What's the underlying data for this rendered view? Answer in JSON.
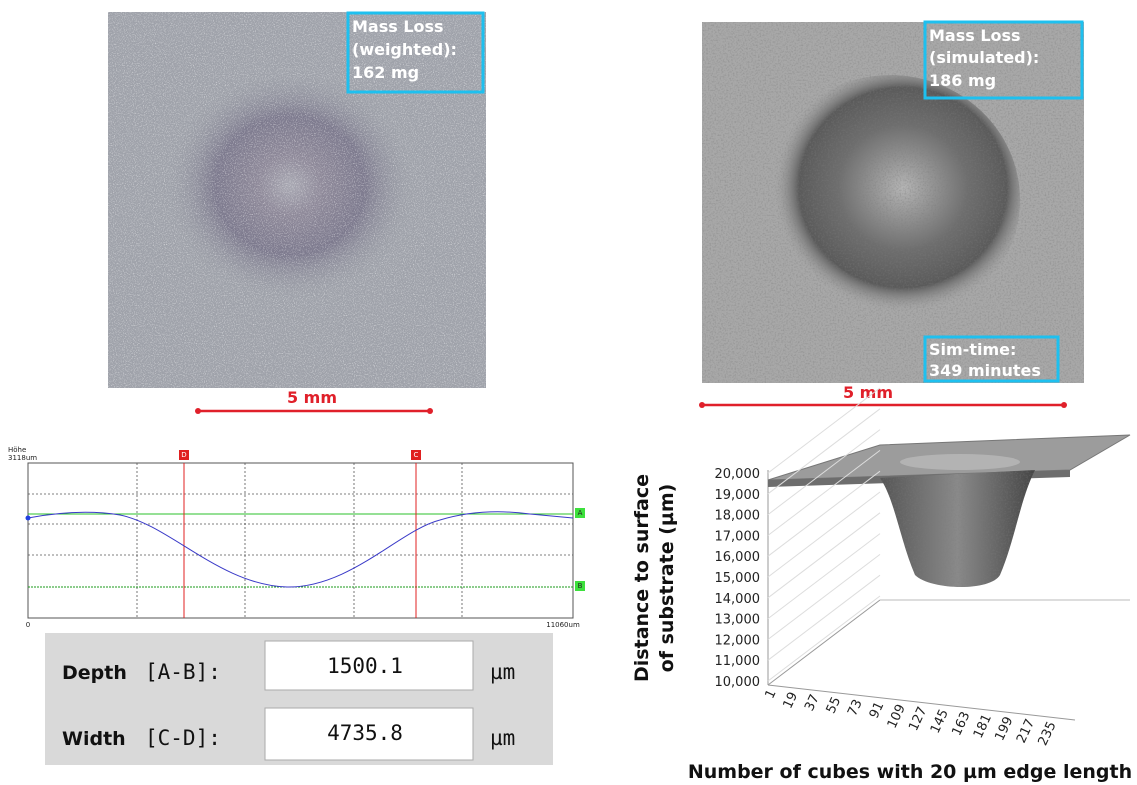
{
  "left_image": {
    "mass_loss_lines": [
      "Mass Loss",
      "(weighted):",
      "162 mg"
    ],
    "scale": "5 mm"
  },
  "right_image": {
    "mass_loss_lines": [
      "Mass Loss",
      "(simulated):",
      "186 mg"
    ],
    "sim_time_lines": [
      "Sim-time:",
      "349 minutes"
    ],
    "scale": "5 mm"
  },
  "profile": {
    "y_label": "Höhe",
    "y_max": "3118um",
    "x_min": "0",
    "x_max": "11060um",
    "cursor_d": "D",
    "cursor_c": "C",
    "cursor_a": "A",
    "cursor_b": "B"
  },
  "measurements": {
    "rows": [
      {
        "label": "Depth",
        "range": "[A-B]:",
        "value": "1500.1",
        "unit": "µm"
      },
      {
        "label": "Width",
        "range": "[C-D]:",
        "value": "4735.8",
        "unit": "µm"
      }
    ]
  },
  "surface_chart": {
    "y_label_lines": [
      "Distance to surface",
      "of substrate (µm)"
    ],
    "yticks": [
      "20,000",
      "19,000",
      "18,000",
      "17,000",
      "16,000",
      "15,000",
      "14,000",
      "13,000",
      "12,000",
      "11,000",
      "10,000"
    ],
    "xticks": [
      "1",
      "19",
      "37",
      "55",
      "73",
      "91",
      "109",
      "127",
      "145",
      "163",
      "181",
      "199",
      "217",
      "235"
    ],
    "x_label": "Number of cubes with 20 µm edge length"
  }
}
